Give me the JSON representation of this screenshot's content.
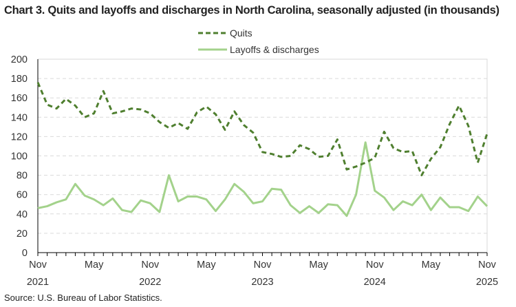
{
  "chart_data": {
    "type": "line",
    "title": "Chart 3. Quits and layoffs and discharges in North Carolina, seasonally adjusted (in thousands)",
    "source": "Source: U.S. Bureau of Labor Statistics.",
    "xlabel": "",
    "ylabel": "",
    "ylim": [
      0,
      200
    ],
    "yticks": [
      "0",
      "20",
      "40",
      "60",
      "80",
      "100",
      "120",
      "140",
      "160",
      "180",
      "200"
    ],
    "x_start": "Nov 2021",
    "x_end": "Nov 2025",
    "xtick_labels": [
      {
        "month": "Nov",
        "year": "2021",
        "index": 0
      },
      {
        "month": "May",
        "year": "",
        "index": 6
      },
      {
        "month": "Nov",
        "year": "2022",
        "index": 12
      },
      {
        "month": "May",
        "year": "",
        "index": 18
      },
      {
        "month": "Nov",
        "year": "2023",
        "index": 24
      },
      {
        "month": "May",
        "year": "",
        "index": 30
      },
      {
        "month": "Nov",
        "year": "2024",
        "index": 36
      },
      {
        "month": "May",
        "year": "",
        "index": 42
      },
      {
        "month": "Nov",
        "year": "2025",
        "index": 48
      }
    ],
    "grid": "horizontal dashed",
    "legend_position": "top-center",
    "series": [
      {
        "name": "Quits",
        "color": "#4f7f2f",
        "style": "dashed",
        "values": [
          176,
          153,
          149,
          159,
          152,
          140,
          144,
          167,
          144,
          146,
          149,
          148,
          144,
          135,
          129,
          134,
          128,
          145,
          151,
          143,
          127,
          146,
          132,
          124,
          104,
          102,
          99,
          100,
          111,
          107,
          99,
          100,
          117,
          86,
          89,
          93,
          98,
          125,
          108,
          104,
          105,
          80,
          97,
          109,
          133,
          152,
          131,
          93,
          123
        ]
      },
      {
        "name": "Layoffs & discharges",
        "color": "#a3d28b",
        "style": "solid",
        "values": [
          46,
          48,
          52,
          55,
          71,
          59,
          55,
          49,
          56,
          44,
          42,
          54,
          51,
          42,
          80,
          53,
          58,
          58,
          55,
          43,
          55,
          71,
          63,
          51,
          53,
          66,
          65,
          49,
          41,
          48,
          41,
          50,
          49,
          38,
          60,
          114,
          64,
          57,
          44,
          53,
          49,
          60,
          44,
          57,
          47,
          47,
          43,
          58,
          48
        ]
      }
    ]
  }
}
